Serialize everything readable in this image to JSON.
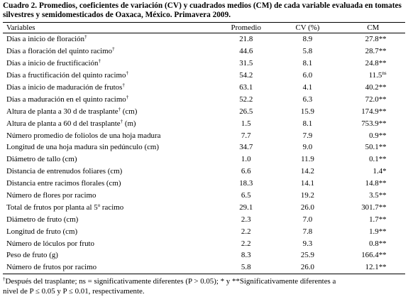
{
  "caption": "Cuadro 2. Promedios, coeficientes de variación (CV) y cuadrados medios (CM) de cada variable evaluada en tomates silvestres y semidomesticados de Oaxaca, México. Primavera 2009.",
  "headers": {
    "variables": "Variables",
    "promedio": "Promedio",
    "cv": "CV (%)",
    "cm": "CM"
  },
  "rows": [
    {
      "variable": "Días a inicio de floración",
      "dagger": "†",
      "promedio": "21.8",
      "cv": "8.9",
      "cm": "27.8",
      "sig": "**"
    },
    {
      "variable": "Días a floración del quinto racimo",
      "dagger": "†",
      "promedio": "44.6",
      "cv": "5.8",
      "cm": "28.7",
      "sig": "**"
    },
    {
      "variable": "Días a inicio de fructificación",
      "dagger": "†",
      "promedio": "31.5",
      "cv": "8.1",
      "cm": "24.8",
      "sig": "**"
    },
    {
      "variable": "Días a fructificación del quinto racimo",
      "dagger": "†",
      "promedio": "54.2",
      "cv": "6.0",
      "cm": "11.5",
      "sig": "ns"
    },
    {
      "variable": "Días a inicio de maduración de frutos",
      "dagger": "†",
      "promedio": "63.1",
      "cv": "4.1",
      "cm": "40.2",
      "sig": "**"
    },
    {
      "variable": "Días a maduración en el quinto racimo",
      "dagger": "†",
      "promedio": "52.2",
      "cv": "6.3",
      "cm": "72.0",
      "sig": "**"
    },
    {
      "variable": "Altura de planta a 30 d de trasplante",
      "dagger": "†",
      "suffix": " (cm)",
      "promedio": "26.5",
      "cv": "15.9",
      "cm": "174.9",
      "sig": "**"
    },
    {
      "variable": "Altura de planta a 60 d del trasplante",
      "dagger": "†",
      "suffix": " (m)",
      "promedio": "1.5",
      "cv": "8.1",
      "cm": "753.9",
      "sig": "**"
    },
    {
      "variable": "Número promedio de foliolos de una hoja madura",
      "promedio": "7.7",
      "cv": "7.9",
      "cm": "0.9",
      "sig": "**"
    },
    {
      "variable": "Longitud de una hoja madura sin pedúnculo (cm)",
      "promedio": "34.7",
      "cv": "9.0",
      "cm": "50.1",
      "sig": "**"
    },
    {
      "variable": "Diámetro de tallo (cm)",
      "promedio": "1.0",
      "cv": "11.9",
      "cm": "0.1",
      "sig": "**"
    },
    {
      "variable": "Distancia de entrenudos foliares (cm)",
      "promedio": "6.6",
      "cv": "14.2",
      "cm": "1.4",
      "sig": "*"
    },
    {
      "variable": "Distancia entre racimos florales (cm)",
      "promedio": "18.3",
      "cv": "14.1",
      "cm": "14.8",
      "sig": "**"
    },
    {
      "variable": "Número de flores por racimo",
      "promedio": "6.5",
      "cv": "19.2",
      "cm": "3.5",
      "sig": "**"
    },
    {
      "variable": "Total de frutos por planta al 5",
      "sup": "o",
      "suffix": " racimo",
      "promedio": "29.1",
      "cv": "26.0",
      "cm": "301.7",
      "sig": "**"
    },
    {
      "variable": "Diámetro de fruto (cm)",
      "promedio": "2.3",
      "cv": "7.0",
      "cm": "1.7",
      "sig": "**"
    },
    {
      "variable": "Longitud de fruto (cm)",
      "promedio": "2.2",
      "cv": "7.8",
      "cm": "1.9",
      "sig": "**"
    },
    {
      "variable": "Número de lóculos por fruto",
      "promedio": "2.2",
      "cv": "9.3",
      "cm": "0.8",
      "sig": "**"
    },
    {
      "variable": "Peso de fruto (g)",
      "promedio": "8.3",
      "cv": "25.9",
      "cm": "166.4",
      "sig": "**"
    },
    {
      "variable": "Número de frutos por racimo",
      "promedio": "5.8",
      "cv": "26.0",
      "cm": "12.1",
      "sig": "**"
    }
  ],
  "footnote": {
    "dagger": "†",
    "line1": "Después del trasplante; ns = significativamente diferentes (P > 0.05); * y **Significativamente diferentes a",
    "line2": "nivel de P ≤ 0.05 y P ≤ 0.01, respectivamente."
  }
}
